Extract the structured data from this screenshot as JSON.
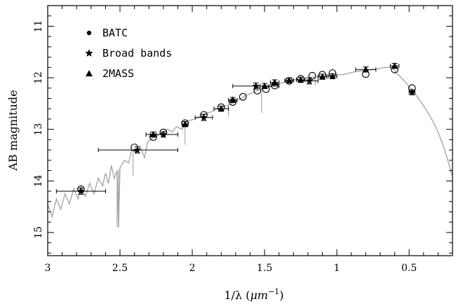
{
  "chart_data": {
    "type": "scatter",
    "xlabel_main": "1/λ (",
    "xlabel_unit": "μm",
    "xlabel_sup": "−1",
    "xlabel_close": ")",
    "ylabel": "AB magnitude",
    "xlim": [
      3.0,
      0.2
    ],
    "ylim": [
      15.45,
      10.6
    ],
    "y_inverted": true,
    "x_ticks": [
      3,
      2.5,
      2,
      1.5,
      1,
      0.5
    ],
    "x_tick_labels": [
      "3",
      "2.5",
      "2",
      "1.5",
      "1",
      "0.5"
    ],
    "y_ticks": [
      11,
      12,
      13,
      14,
      15
    ],
    "y_tick_labels": [
      "11",
      "12",
      "13",
      "14",
      "15"
    ],
    "legend_position": "top-left",
    "series": [
      {
        "name": "BATC",
        "marker": "circle",
        "points": [
          {
            "x": 2.77,
            "y": 14.16
          },
          {
            "x": 2.4,
            "y": 13.35
          },
          {
            "x": 2.27,
            "y": 13.15
          },
          {
            "x": 2.2,
            "y": 13.06
          },
          {
            "x": 2.05,
            "y": 12.88
          },
          {
            "x": 1.92,
            "y": 12.72
          },
          {
            "x": 1.8,
            "y": 12.57
          },
          {
            "x": 1.72,
            "y": 12.47
          },
          {
            "x": 1.65,
            "y": 12.37
          },
          {
            "x": 1.55,
            "y": 12.25
          },
          {
            "x": 1.49,
            "y": 12.22
          },
          {
            "x": 1.43,
            "y": 12.15
          },
          {
            "x": 1.33,
            "y": 12.06
          },
          {
            "x": 1.25,
            "y": 12.02
          },
          {
            "x": 1.17,
            "y": 11.96
          },
          {
            "x": 1.1,
            "y": 11.94
          },
          {
            "x": 1.03,
            "y": 11.91
          },
          {
            "x": 0.8,
            "y": 11.93
          },
          {
            "x": 0.6,
            "y": 11.84
          },
          {
            "x": 0.48,
            "y": 12.2
          }
        ]
      },
      {
        "name": "Broad bands",
        "marker": "star",
        "points": [
          {
            "x": 2.77,
            "y": 14.2,
            "xerr": [
              2.94,
              2.6
            ],
            "yerr": 0.06
          },
          {
            "x": 2.38,
            "y": 13.4,
            "xerr": [
              2.65,
              2.1
            ],
            "yerr": 0.06
          },
          {
            "x": 2.2,
            "y": 13.1,
            "xerr": [
              2.32,
              2.1
            ],
            "yerr": 0.05
          },
          {
            "x": 1.92,
            "y": 12.77,
            "xerr": [
              1.98,
              1.86
            ],
            "yerr": 0.06
          },
          {
            "x": 1.56,
            "y": 12.16,
            "xerr": [
              1.72,
              1.4
            ],
            "yerr": 0.06
          },
          {
            "x": 1.19,
            "y": 12.06,
            "xerr": [
              1.25,
              1.13
            ],
            "yerr": 0.06
          },
          {
            "x": 0.48,
            "y": 12.28,
            "xerr": [
              0.5,
              0.46
            ],
            "yerr": 0.05
          }
        ]
      },
      {
        "name": "2MASS",
        "marker": "triangle",
        "points": [
          {
            "x": 2.27,
            "y": 13.1,
            "xerr": [
              2.29,
              2.25
            ],
            "yerr": 0.05
          },
          {
            "x": 2.05,
            "y": 12.9,
            "xerr": [
              2.07,
              2.03
            ],
            "yerr": 0.05
          },
          {
            "x": 1.8,
            "y": 12.6,
            "xerr": [
              1.85,
              1.75
            ],
            "yerr": 0.05
          },
          {
            "x": 1.72,
            "y": 12.43,
            "xerr": [
              1.75,
              1.69
            ],
            "yerr": 0.05
          },
          {
            "x": 1.5,
            "y": 12.16,
            "xerr": [
              1.53,
              1.47
            ],
            "yerr": 0.05
          },
          {
            "x": 1.43,
            "y": 12.09,
            "xerr": [
              1.46,
              1.4
            ],
            "yerr": 0.05
          },
          {
            "x": 1.33,
            "y": 12.05,
            "xerr": [
              1.36,
              1.3
            ],
            "yerr": 0.05
          },
          {
            "x": 1.25,
            "y": 12.04,
            "xerr": [
              1.28,
              1.22
            ],
            "yerr": 0.05
          },
          {
            "x": 1.1,
            "y": 11.98,
            "xerr": [
              1.13,
              1.07
            ],
            "yerr": 0.05
          },
          {
            "x": 1.03,
            "y": 11.97,
            "xerr": [
              1.06,
              1.0
            ],
            "yerr": 0.05
          },
          {
            "x": 0.8,
            "y": 11.84,
            "xerr": [
              0.87,
              0.73
            ],
            "yerr": 0.05
          },
          {
            "x": 0.6,
            "y": 11.77,
            "xerr": [
              0.63,
              0.57
            ],
            "yerr": 0.05
          }
        ]
      }
    ],
    "model_spectrum": {
      "color": "#a8a8a8",
      "points": [
        [
          3.0,
          14.45
        ],
        [
          2.97,
          14.7
        ],
        [
          2.94,
          14.35
        ],
        [
          2.91,
          14.55
        ],
        [
          2.88,
          14.25
        ],
        [
          2.85,
          14.45
        ],
        [
          2.82,
          14.15
        ],
        [
          2.79,
          14.35
        ],
        [
          2.77,
          14.1
        ],
        [
          2.74,
          14.3
        ],
        [
          2.71,
          14.05
        ],
        [
          2.68,
          14.25
        ],
        [
          2.65,
          13.95
        ],
        [
          2.62,
          14.1
        ],
        [
          2.6,
          13.85
        ],
        [
          2.58,
          14.05
        ],
        [
          2.56,
          13.7
        ],
        [
          2.54,
          13.95
        ],
        [
          2.52,
          13.8
        ],
        [
          2.51,
          14.9
        ],
        [
          2.5,
          13.75
        ],
        [
          2.47,
          13.6
        ],
        [
          2.44,
          13.65
        ],
        [
          2.42,
          13.4
        ],
        [
          2.39,
          13.45
        ],
        [
          2.36,
          13.35
        ],
        [
          2.33,
          13.55
        ],
        [
          2.31,
          13.25
        ],
        [
          2.29,
          13.2
        ],
        [
          2.26,
          13.15
        ],
        [
          2.23,
          13.1
        ],
        [
          2.2,
          13.05
        ],
        [
          2.17,
          13.0
        ],
        [
          2.14,
          13.05
        ],
        [
          2.11,
          12.95
        ],
        [
          2.07,
          13.0
        ],
        [
          2.04,
          12.85
        ],
        [
          2.01,
          12.82
        ],
        [
          1.98,
          12.8
        ],
        [
          1.95,
          12.75
        ],
        [
          1.92,
          12.7
        ],
        [
          1.89,
          12.68
        ],
        [
          1.86,
          12.65
        ],
        [
          1.83,
          12.6
        ],
        [
          1.8,
          12.58
        ],
        [
          1.77,
          12.55
        ],
        [
          1.74,
          12.52
        ],
        [
          1.71,
          12.47
        ],
        [
          1.68,
          12.42
        ],
        [
          1.65,
          12.38
        ],
        [
          1.62,
          12.33
        ],
        [
          1.59,
          12.3
        ],
        [
          1.56,
          12.26
        ],
        [
          1.53,
          12.23
        ],
        [
          1.5,
          12.2
        ],
        [
          1.47,
          12.18
        ],
        [
          1.44,
          12.15
        ],
        [
          1.41,
          12.12
        ],
        [
          1.38,
          12.1
        ],
        [
          1.35,
          12.08
        ],
        [
          1.32,
          12.05
        ],
        [
          1.29,
          12.04
        ],
        [
          1.26,
          12.02
        ],
        [
          1.23,
          12.01
        ],
        [
          1.2,
          12.0
        ],
        [
          1.17,
          11.99
        ],
        [
          1.14,
          11.98
        ],
        [
          1.11,
          11.97
        ],
        [
          1.08,
          11.96
        ],
        [
          1.05,
          11.95
        ],
        [
          1.02,
          11.95
        ],
        [
          0.99,
          11.94
        ],
        [
          0.96,
          11.94
        ],
        [
          0.93,
          11.92
        ],
        [
          0.9,
          11.9
        ],
        [
          0.87,
          11.88
        ],
        [
          0.84,
          11.87
        ],
        [
          0.81,
          11.86
        ],
        [
          0.78,
          11.85
        ],
        [
          0.75,
          11.84
        ],
        [
          0.72,
          11.83
        ],
        [
          0.69,
          11.81
        ],
        [
          0.66,
          11.8
        ],
        [
          0.63,
          11.8
        ],
        [
          0.61,
          11.82
        ],
        [
          0.59,
          11.9
        ],
        [
          0.56,
          11.98
        ],
        [
          0.53,
          12.07
        ],
        [
          0.5,
          12.17
        ],
        [
          0.47,
          12.27
        ],
        [
          0.44,
          12.38
        ],
        [
          0.41,
          12.5
        ],
        [
          0.38,
          12.63
        ],
        [
          0.35,
          12.77
        ],
        [
          0.32,
          12.93
        ],
        [
          0.29,
          13.12
        ],
        [
          0.26,
          13.35
        ],
        [
          0.23,
          13.62
        ],
        [
          0.21,
          13.82
        ],
        [
          0.2,
          13.92
        ]
      ]
    },
    "spectrum_spikes": [
      {
        "x": 2.52,
        "y1": 13.8,
        "y2": 14.9
      },
      {
        "x": 2.51,
        "y1": 13.78,
        "y2": 14.88
      },
      {
        "x": 2.41,
        "y1": 13.45,
        "y2": 13.9
      },
      {
        "x": 2.05,
        "y1": 12.85,
        "y2": 13.3
      },
      {
        "x": 1.75,
        "y1": 12.5,
        "y2": 12.75
      },
      {
        "x": 1.52,
        "y1": 12.22,
        "y2": 12.68
      },
      {
        "x": 1.15,
        "y1": 11.98,
        "y2": 12.15
      }
    ]
  }
}
